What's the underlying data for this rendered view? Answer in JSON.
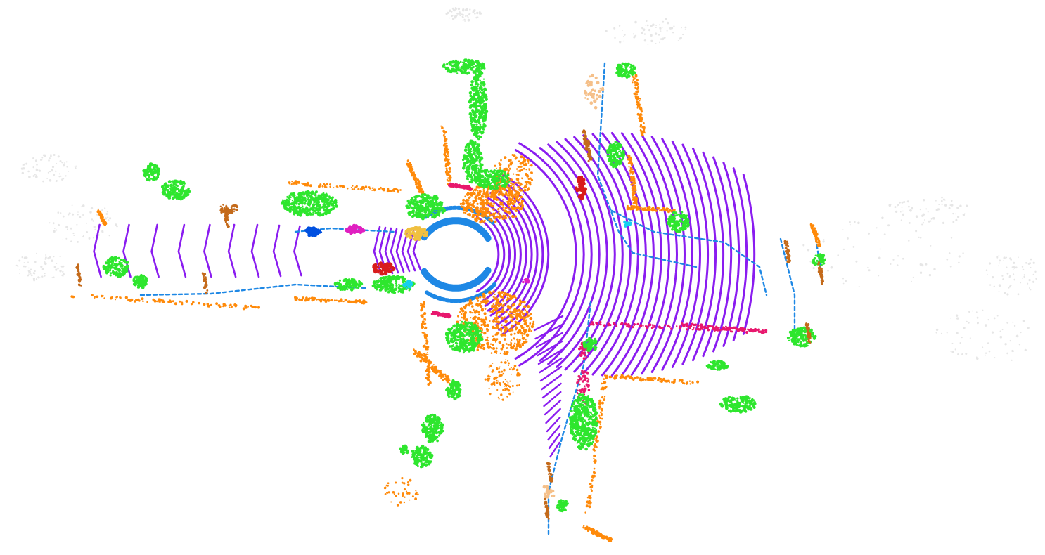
{
  "view": {
    "type": "lidar-semantic-segmentation-bev",
    "background": "#ffffff",
    "ego_gap": "ring-of-no-returns"
  },
  "classes": [
    {
      "name": "road",
      "color": "#8a1cf0"
    },
    {
      "name": "sidewalk",
      "color": "#1e88e5"
    },
    {
      "name": "building",
      "color": "#ff8a0a"
    },
    {
      "name": "vegetation",
      "color": "#2ee62e"
    },
    {
      "name": "pole-trunk",
      "color": "#c46a1a"
    },
    {
      "name": "parking",
      "color": "#e8186e"
    },
    {
      "name": "car",
      "color": "#0050e0"
    },
    {
      "name": "truck",
      "color": "#f0c040"
    },
    {
      "name": "person",
      "color": "#e020c0"
    },
    {
      "name": "bicycle",
      "color": "#d81c1c"
    },
    {
      "name": "traffic-sign",
      "color": "#14d0f0"
    },
    {
      "name": "other-ground",
      "color": "#f5c08a"
    },
    {
      "name": "unlabeled",
      "color": "#e6e6e6"
    }
  ]
}
